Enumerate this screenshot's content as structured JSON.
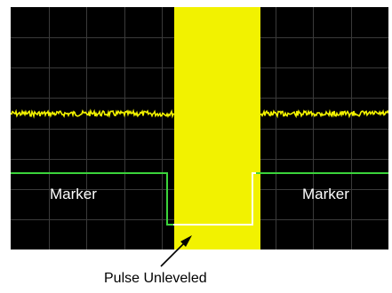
{
  "screen": {
    "marker_left": "Marker",
    "marker_right": "Marker"
  },
  "annotation": {
    "text": "Pulse Unleveled"
  },
  "colors": {
    "screen_background": "#000000",
    "grid": "#3a3a3a",
    "rf_trace": "#f2f200",
    "marker_trace": "#3bd43b",
    "unleveled_trace": "#ffffff",
    "annotation_text": "#000000",
    "marker_text": "#ffffff"
  },
  "icons": {
    "pointer": "arrow-pointer-icon"
  }
}
